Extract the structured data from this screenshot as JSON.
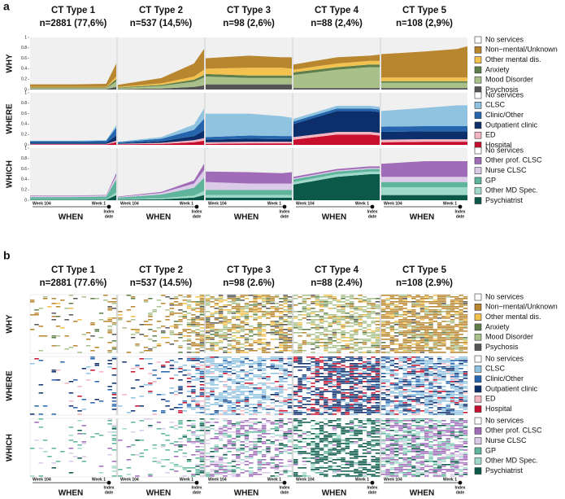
{
  "panel_a": {
    "label": "a",
    "titles": [
      {
        "name": "CT Type 1",
        "n": "n=2881 (77,6%)"
      },
      {
        "name": "CT Type 2",
        "n": "n=537 (14,5%)"
      },
      {
        "name": "CT Type 3",
        "n": "n=98 (2,6%)"
      },
      {
        "name": "CT Type 4",
        "n": "n=88 (2,4%)"
      },
      {
        "name": "CT Type 5",
        "n": "n=108 (2,9%)"
      }
    ]
  },
  "panel_b": {
    "label": "b",
    "titles": [
      {
        "name": "CT Type 1",
        "n": "n=2881 (77.6%)"
      },
      {
        "name": "CT Type 2",
        "n": "n=537 (14.5%)"
      },
      {
        "name": "CT Type 3",
        "n": "n=98 (2.6%)"
      },
      {
        "name": "CT Type 4",
        "n": "n=88 (2.4%)"
      },
      {
        "name": "CT Type 5",
        "n": "n=108 (2.9%)"
      }
    ]
  },
  "chart_data": {
    "type": "stacked_area",
    "x": [
      104,
      52,
      13,
      1
    ],
    "xlim": [
      104,
      1
    ],
    "x_labels": [
      "Week 104",
      "Week 1"
    ],
    "index_label": [
      "Index",
      "date"
    ],
    "x_title": "WHEN",
    "ylim": [
      0,
      1
    ],
    "yticks": [
      0,
      0.2,
      0.4,
      0.6,
      0.8,
      1
    ],
    "rows": [
      {
        "name": "WHY",
        "series": [
          {
            "name": "No services",
            "color": "#ffffff"
          },
          {
            "name": "Non−mental/Unknown",
            "color": "#b8862f",
            "values": [
              [
                0.05,
                0.05,
                0.06,
                0.25
              ],
              [
                0.04,
                0.1,
                0.25,
                0.4
              ],
              [
                0.2,
                0.23,
                0.2,
                0.22
              ],
              [
                0.1,
                0.12,
                0.1,
                0.12
              ],
              [
                0.45,
                0.5,
                0.55,
                0.6
              ]
            ]
          },
          {
            "name": "Other mental dis.",
            "color": "#f2c14e",
            "values": [
              [
                0.01,
                0.01,
                0.01,
                0.05
              ],
              [
                0.01,
                0.03,
                0.06,
                0.1
              ],
              [
                0.1,
                0.15,
                0.15,
                0.13
              ],
              [
                0.05,
                0.07,
                0.07,
                0.07
              ],
              [
                0.07,
                0.07,
                0.07,
                0.07
              ]
            ]
          },
          {
            "name": "Anxiety",
            "color": "#5e7f4c",
            "values": [
              [
                0.01,
                0.01,
                0.01,
                0.05
              ],
              [
                0.01,
                0.02,
                0.04,
                0.05
              ],
              [
                0.05,
                0.05,
                0.05,
                0.05
              ],
              [
                0.05,
                0.05,
                0.05,
                0.05
              ],
              [
                0.03,
                0.03,
                0.03,
                0.03
              ]
            ]
          },
          {
            "name": "Mood Disorder",
            "color": "#a9c08b",
            "values": [
              [
                0.02,
                0.02,
                0.02,
                0.1
              ],
              [
                0.02,
                0.05,
                0.1,
                0.15
              ],
              [
                0.15,
                0.12,
                0.12,
                0.12
              ],
              [
                0.25,
                0.35,
                0.4,
                0.4
              ],
              [
                0.1,
                0.1,
                0.1,
                0.1
              ]
            ]
          },
          {
            "name": "Psychosis",
            "color": "#555555",
            "values": [
              [
                0.01,
                0.01,
                0.01,
                0.05
              ],
              [
                0.01,
                0.02,
                0.05,
                0.08
              ],
              [
                0.1,
                0.1,
                0.1,
                0.1
              ],
              [
                0.03,
                0.03,
                0.03,
                0.03
              ],
              [
                0.03,
                0.03,
                0.03,
                0.03
              ]
            ]
          }
        ]
      },
      {
        "name": "WHERE",
        "series": [
          {
            "name": "No services",
            "color": "#ffffff"
          },
          {
            "name": "CLSC",
            "color": "#8fc3e0",
            "values": [
              [
                0.01,
                0.01,
                0.01,
                0.05
              ],
              [
                0.01,
                0.03,
                0.1,
                0.2
              ],
              [
                0.45,
                0.42,
                0.38,
                0.35
              ],
              [
                0.05,
                0.05,
                0.05,
                0.05
              ],
              [
                0.3,
                0.35,
                0.4,
                0.4
              ]
            ]
          },
          {
            "name": "Clinic/Other",
            "color": "#2465ad",
            "values": [
              [
                0.03,
                0.03,
                0.04,
                0.15
              ],
              [
                0.02,
                0.05,
                0.12,
                0.22
              ],
              [
                0.05,
                0.06,
                0.06,
                0.06
              ],
              [
                0.05,
                0.05,
                0.05,
                0.05
              ],
              [
                0.1,
                0.1,
                0.1,
                0.1
              ]
            ]
          },
          {
            "name": "Outpatient clinic",
            "color": "#0c2f6b",
            "values": [
              [
                0.02,
                0.02,
                0.02,
                0.1
              ],
              [
                0.01,
                0.03,
                0.08,
                0.15
              ],
              [
                0.05,
                0.06,
                0.05,
                0.05
              ],
              [
                0.25,
                0.4,
                0.4,
                0.4
              ],
              [
                0.15,
                0.15,
                0.15,
                0.15
              ]
            ]
          },
          {
            "name": "ED",
            "color": "#f4b6c2",
            "values": [
              [
                0.01,
                0.01,
                0.01,
                0.03
              ],
              [
                0.01,
                0.02,
                0.04,
                0.05
              ],
              [
                0.03,
                0.03,
                0.03,
                0.03
              ],
              [
                0.05,
                0.05,
                0.05,
                0.05
              ],
              [
                0.05,
                0.05,
                0.05,
                0.05
              ]
            ]
          },
          {
            "name": "Hospital",
            "color": "#c8102e",
            "values": [
              [
                0.01,
                0.01,
                0.01,
                0.05
              ],
              [
                0.01,
                0.02,
                0.05,
                0.08
              ],
              [
                0.02,
                0.03,
                0.03,
                0.03
              ],
              [
                0.1,
                0.2,
                0.2,
                0.18
              ],
              [
                0.05,
                0.06,
                0.06,
                0.06
              ]
            ]
          }
        ]
      },
      {
        "name": "WHICH",
        "series": [
          {
            "name": "No services",
            "color": "#ffffff"
          },
          {
            "name": "Other prof. CLSC",
            "color": "#a06cb8",
            "values": [
              [
                0.01,
                0.01,
                0.01,
                0.05
              ],
              [
                0.01,
                0.02,
                0.06,
                0.12
              ],
              [
                0.2,
                0.22,
                0.2,
                0.22
              ],
              [
                0.03,
                0.03,
                0.03,
                0.03
              ],
              [
                0.25,
                0.3,
                0.3,
                0.3
              ]
            ]
          },
          {
            "name": "Nurse CLSC",
            "color": "#dccbe8",
            "values": [
              [
                0.02,
                0.02,
                0.02,
                0.07
              ],
              [
                0.01,
                0.03,
                0.08,
                0.15
              ],
              [
                0.15,
                0.12,
                0.12,
                0.12
              ],
              [
                0.02,
                0.02,
                0.02,
                0.02
              ],
              [
                0.1,
                0.1,
                0.1,
                0.1
              ]
            ]
          },
          {
            "name": "GP",
            "color": "#5fb49c",
            "values": [
              [
                0.04,
                0.04,
                0.05,
                0.25
              ],
              [
                0.03,
                0.07,
                0.15,
                0.25
              ],
              [
                0.1,
                0.1,
                0.1,
                0.1
              ],
              [
                0.05,
                0.05,
                0.05,
                0.05
              ],
              [
                0.1,
                0.1,
                0.1,
                0.1
              ]
            ]
          },
          {
            "name": "Other MD Spec.",
            "color": "#9fd9c9",
            "values": [
              [
                0.01,
                0.01,
                0.01,
                0.05
              ],
              [
                0.01,
                0.02,
                0.04,
                0.08
              ],
              [
                0.05,
                0.05,
                0.05,
                0.05
              ],
              [
                0.05,
                0.05,
                0.05,
                0.05
              ],
              [
                0.15,
                0.15,
                0.15,
                0.15
              ]
            ]
          },
          {
            "name": "Psychiatrist",
            "color": "#0b5a49",
            "values": [
              [
                0.01,
                0.01,
                0.01,
                0.1
              ],
              [
                0.01,
                0.02,
                0.05,
                0.1
              ],
              [
                0.05,
                0.05,
                0.05,
                0.05
              ],
              [
                0.3,
                0.45,
                0.5,
                0.5
              ],
              [
                0.1,
                0.1,
                0.1,
                0.1
              ]
            ]
          }
        ]
      }
    ]
  }
}
